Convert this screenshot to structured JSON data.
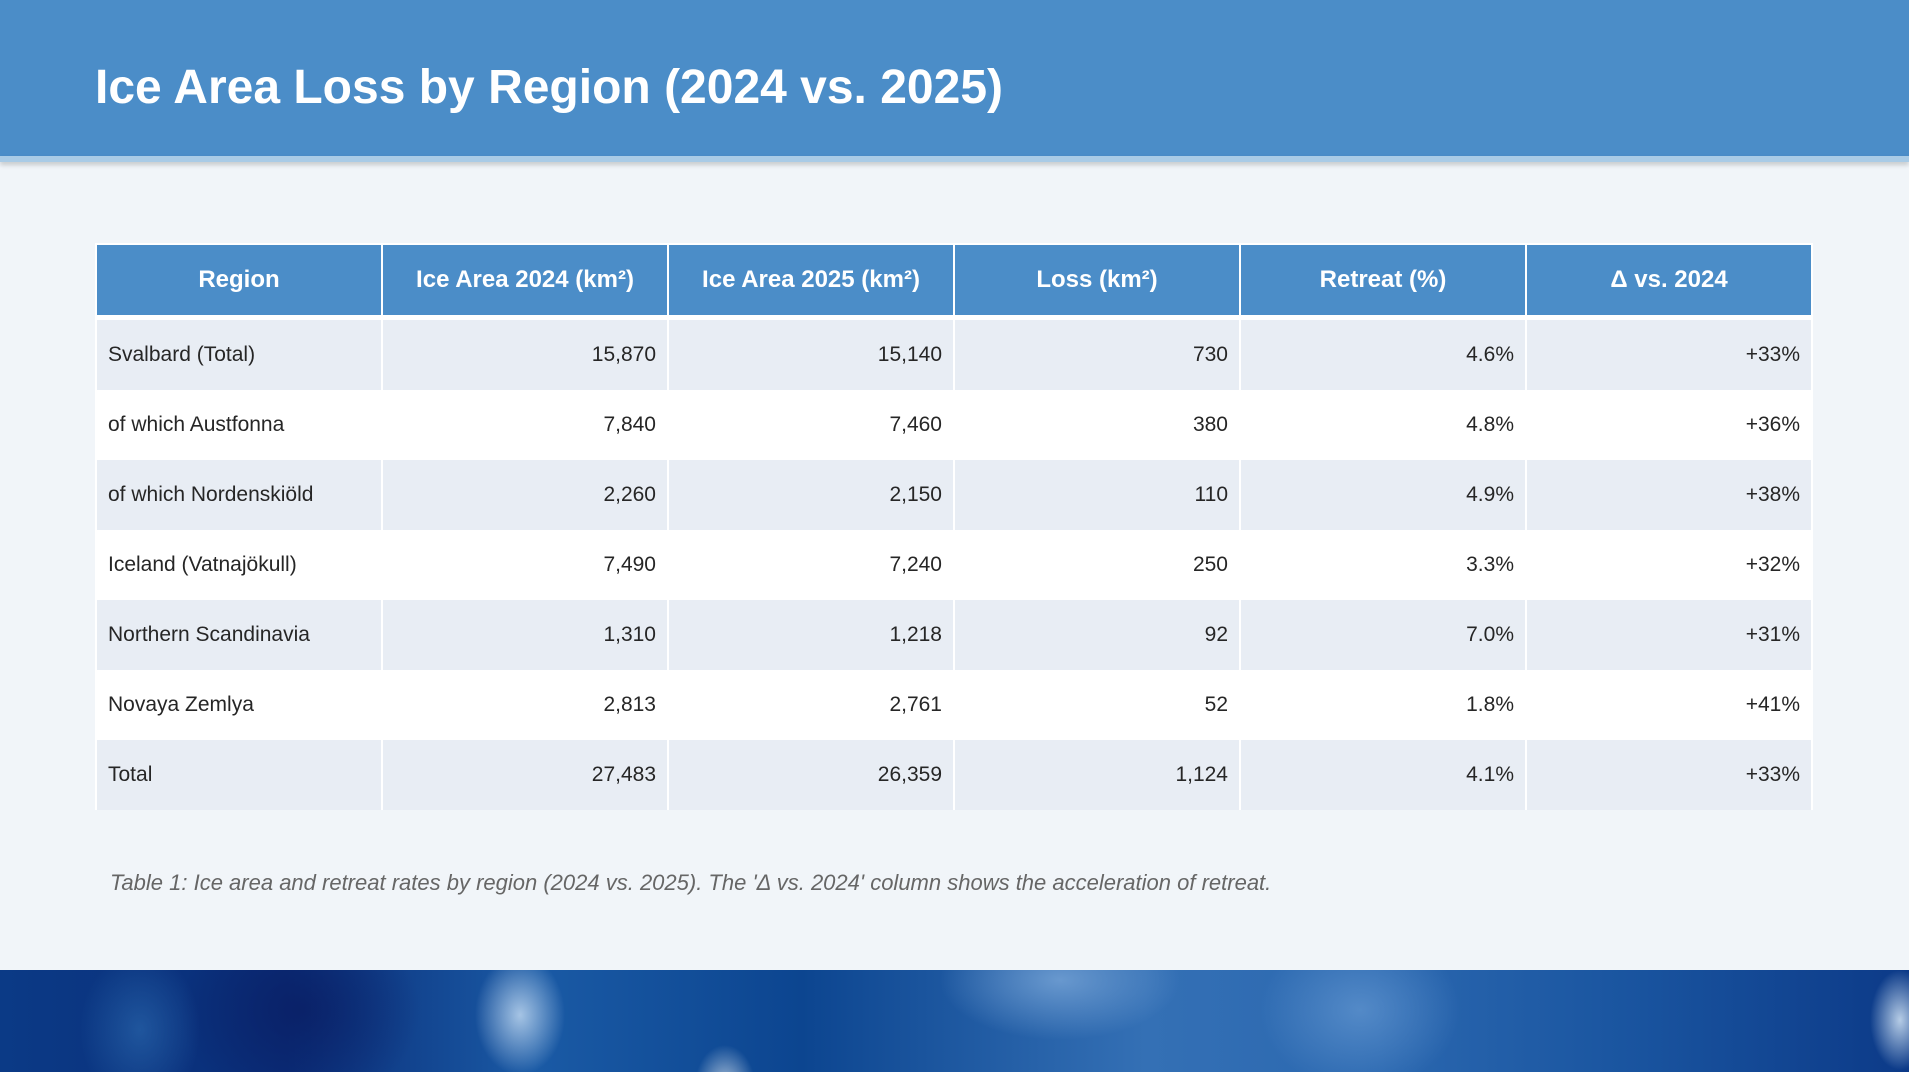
{
  "title": "Ice Area Loss by Region (2024 vs. 2025)",
  "table": {
    "headers": [
      "Region",
      "Ice Area 2024 (km²)",
      "Ice Area 2025 (km²)",
      "Loss (km²)",
      "Retreat (%)",
      "Δ vs. 2024"
    ],
    "rows": [
      [
        "Svalbard (Total)",
        "15,870",
        "15,140",
        "730",
        "4.6%",
        "+33%"
      ],
      [
        "of which Austfonna",
        "7,840",
        "7,460",
        "380",
        "4.8%",
        "+36%"
      ],
      [
        "of which Nordenskiöld",
        "2,260",
        "2,150",
        "110",
        "4.9%",
        "+38%"
      ],
      [
        "Iceland (Vatnajökull)",
        "7,490",
        "7,240",
        "250",
        "3.3%",
        "+32%"
      ],
      [
        "Northern Scandinavia",
        "1,310",
        "1,218",
        "92",
        "7.0%",
        "+31%"
      ],
      [
        "Novaya Zemlya",
        "2,813",
        "2,761",
        "52",
        "1.8%",
        "+41%"
      ],
      [
        "Total",
        "27,483",
        "26,359",
        "1,124",
        "4.1%",
        "+33%"
      ]
    ]
  },
  "caption": "Table 1: Ice area and retreat rates by region (2024 vs. 2025). The 'Δ vs. 2024' column shows the acceleration of retreat.",
  "colors": {
    "header": "#4b8dc8",
    "row_alt": "#e8edf4",
    "background": "#f1f5f9"
  }
}
